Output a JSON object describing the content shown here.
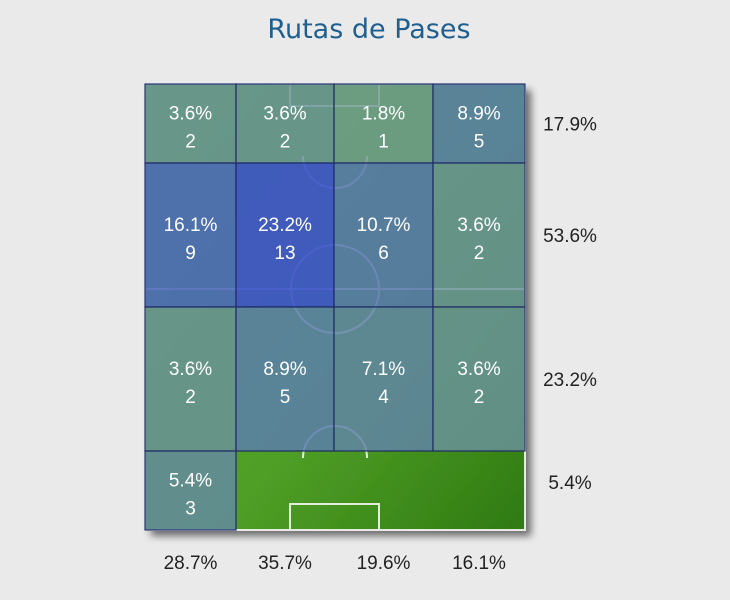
{
  "title": "Rutas de Pases",
  "chart_data": {
    "type": "heatmap",
    "title": "Rutas de Pases",
    "rows": [
      {
        "total": "17.9%",
        "cells": [
          {
            "pct": "3.6%",
            "count": "2"
          },
          {
            "pct": "3.6%",
            "count": "2"
          },
          {
            "pct": "1.8%",
            "count": "1"
          },
          {
            "pct": "8.9%",
            "count": "5"
          }
        ]
      },
      {
        "total": "53.6%",
        "cells": [
          {
            "pct": "16.1%",
            "count": "9"
          },
          {
            "pct": "23.2%",
            "count": "13"
          },
          {
            "pct": "10.7%",
            "count": "6"
          },
          {
            "pct": "3.6%",
            "count": "2"
          }
        ]
      },
      {
        "total": "23.2%",
        "cells": [
          {
            "pct": "3.6%",
            "count": "2"
          },
          {
            "pct": "8.9%",
            "count": "5"
          },
          {
            "pct": "7.1%",
            "count": "4"
          },
          {
            "pct": "3.6%",
            "count": "2"
          }
        ]
      },
      {
        "total": "5.4%",
        "cells": [
          {
            "pct": "5.4%",
            "count": "3"
          },
          null,
          null,
          null
        ]
      }
    ],
    "column_totals": [
      "28.7%",
      "35.7%",
      "19.6%",
      "16.1%"
    ],
    "colors": {
      "grass": "#5aa530",
      "grass_dark": "#3e8a1c",
      "high": "#3e55c8",
      "low": "#7aa88a",
      "border": "#1f2a66"
    }
  }
}
